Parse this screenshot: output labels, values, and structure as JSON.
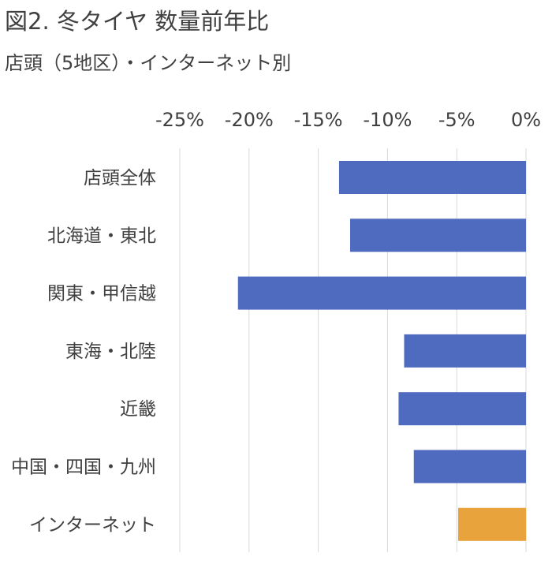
{
  "title": "図2. 冬タイヤ 数量前年比",
  "subtitle": "店頭（5地区）・インターネット別",
  "chart_data": {
    "type": "bar",
    "orientation": "horizontal",
    "categories": [
      "店頭全体",
      "北海道・東北",
      "関東・甲信越",
      "東海・北陸",
      "近畿",
      "中国・四国・九州",
      "インターネット"
    ],
    "values": [
      -13.5,
      -12.7,
      -20.8,
      -8.8,
      -9.2,
      -8.1,
      -4.9
    ],
    "xlim": [
      -25,
      0
    ],
    "xticks": [
      -25,
      -20,
      -15,
      -10,
      -5,
      0
    ],
    "xtick_labels": [
      "-25%",
      "-20%",
      "-15%",
      "-10%",
      "-5%",
      "0%"
    ],
    "x_axis_position": "top",
    "grid": true,
    "colors": [
      "#4F6BBF",
      "#4F6BBF",
      "#4F6BBF",
      "#4F6BBF",
      "#4F6BBF",
      "#4F6BBF",
      "#E8A33D"
    ],
    "gridline_color": "#D9D9D9",
    "text_color": "#404040"
  }
}
